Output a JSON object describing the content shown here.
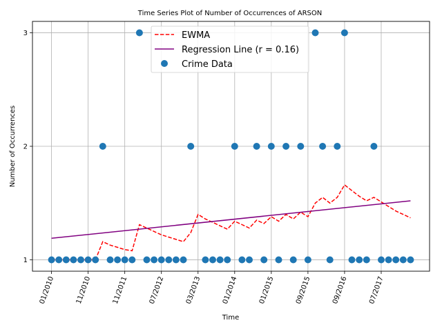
{
  "chart_data": {
    "type": "scatter",
    "title": "Time Series Plot of Number of Occurrences of ARSON",
    "xlabel": "Time",
    "ylabel": "Number of Occurrences",
    "x_ticks": [
      {
        "label": "01/2010",
        "x": 0
      },
      {
        "label": "11/2010",
        "x": 5
      },
      {
        "label": "11/2011",
        "x": 10
      },
      {
        "label": "07/2012",
        "x": 15
      },
      {
        "label": "03/2013",
        "x": 20
      },
      {
        "label": "01/2014",
        "x": 25
      },
      {
        "label": "01/2015",
        "x": 30
      },
      {
        "label": "09/2015",
        "x": 35
      },
      {
        "label": "09/2016",
        "x": 40
      },
      {
        "label": "07/2017",
        "x": 45
      }
    ],
    "xlim": [
      -2.6,
      51.6
    ],
    "ylim": [
      0.9,
      3.1
    ],
    "yticks": [
      1,
      2,
      3
    ],
    "grid": true,
    "legend_position": "top-center",
    "series": [
      {
        "name": "Crime Data",
        "kind": "scatter",
        "color": "#1f77b4",
        "points": [
          [
            0,
            1
          ],
          [
            1,
            1
          ],
          [
            2,
            1
          ],
          [
            3,
            1
          ],
          [
            4,
            1
          ],
          [
            5,
            1
          ],
          [
            6,
            1
          ],
          [
            7,
            2
          ],
          [
            8,
            1
          ],
          [
            9,
            1
          ],
          [
            10,
            1
          ],
          [
            11,
            1
          ],
          [
            12,
            3
          ],
          [
            13,
            1
          ],
          [
            14,
            1
          ],
          [
            15,
            1
          ],
          [
            16,
            1
          ],
          [
            17,
            1
          ],
          [
            18,
            1
          ],
          [
            19,
            2
          ],
          [
            21,
            1
          ],
          [
            22,
            1
          ],
          [
            23,
            1
          ],
          [
            24,
            1
          ],
          [
            25,
            2
          ],
          [
            26,
            1
          ],
          [
            27,
            1
          ],
          [
            28,
            2
          ],
          [
            29,
            1
          ],
          [
            30,
            2
          ],
          [
            31,
            1
          ],
          [
            32,
            2
          ],
          [
            33,
            1
          ],
          [
            34,
            2
          ],
          [
            35,
            1
          ],
          [
            36,
            3
          ],
          [
            37,
            2
          ],
          [
            38,
            1
          ],
          [
            39,
            2
          ],
          [
            40,
            3
          ],
          [
            41,
            1
          ],
          [
            42,
            1
          ],
          [
            43,
            1
          ],
          [
            44,
            2
          ],
          [
            45,
            1
          ],
          [
            46,
            1
          ],
          [
            47,
            1
          ],
          [
            48,
            1
          ],
          [
            49,
            1
          ]
        ]
      },
      {
        "name": "EWMA",
        "kind": "line",
        "dash": true,
        "color": "#ff0000",
        "points": [
          [
            0,
            1
          ],
          [
            1,
            1
          ],
          [
            2,
            1
          ],
          [
            3,
            1
          ],
          [
            4,
            1
          ],
          [
            5,
            1
          ],
          [
            6,
            1
          ],
          [
            7,
            1.16
          ],
          [
            8,
            1.13
          ],
          [
            9,
            1.11
          ],
          [
            10,
            1.09
          ],
          [
            11,
            1.08
          ],
          [
            12,
            1.31
          ],
          [
            13,
            1.28
          ],
          [
            14,
            1.25
          ],
          [
            15,
            1.22
          ],
          [
            16,
            1.2
          ],
          [
            17,
            1.18
          ],
          [
            18,
            1.16
          ],
          [
            19,
            1.24
          ],
          [
            20,
            1.4
          ],
          [
            21,
            1.36
          ],
          [
            22,
            1.33
          ],
          [
            23,
            1.3
          ],
          [
            24,
            1.27
          ],
          [
            25,
            1.34
          ],
          [
            26,
            1.31
          ],
          [
            27,
            1.28
          ],
          [
            28,
            1.35
          ],
          [
            29,
            1.32
          ],
          [
            30,
            1.38
          ],
          [
            31,
            1.34
          ],
          [
            32,
            1.4
          ],
          [
            33,
            1.36
          ],
          [
            34,
            1.42
          ],
          [
            35,
            1.38
          ],
          [
            36,
            1.5
          ],
          [
            37,
            1.55
          ],
          [
            38,
            1.5
          ],
          [
            39,
            1.55
          ],
          [
            40,
            1.66
          ],
          [
            41,
            1.61
          ],
          [
            42,
            1.56
          ],
          [
            43,
            1.52
          ],
          [
            44,
            1.55
          ],
          [
            45,
            1.51
          ],
          [
            46,
            1.47
          ],
          [
            47,
            1.43
          ],
          [
            48,
            1.4
          ],
          [
            49,
            1.37
          ]
        ]
      },
      {
        "name": "Regression Line (r = 0.16)",
        "kind": "line",
        "dash": false,
        "color": "#800080",
        "points": [
          [
            0,
            1.19
          ],
          [
            49,
            1.52
          ]
        ]
      }
    ]
  }
}
